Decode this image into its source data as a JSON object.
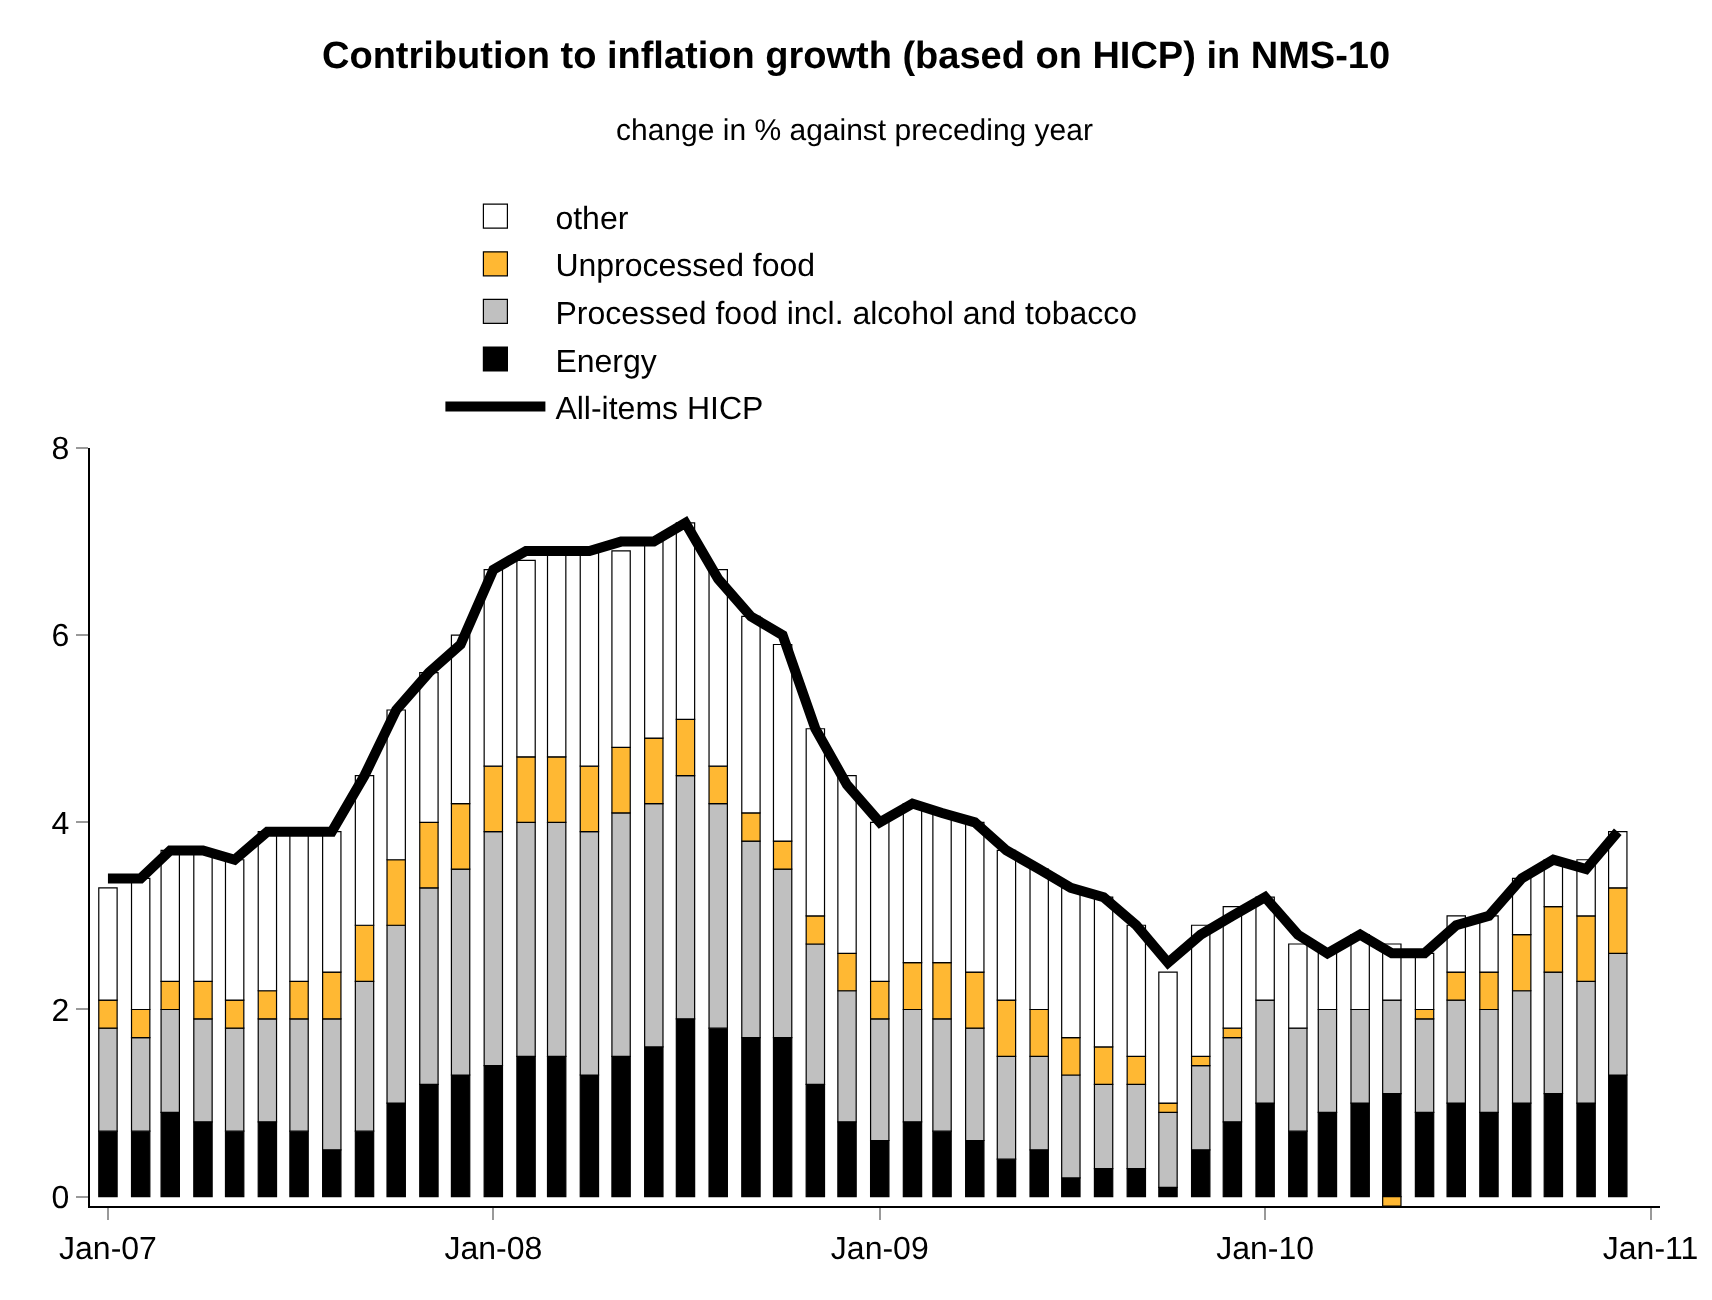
{
  "chart_data": {
    "type": "bar",
    "title": "Contribution to inflation growth (based on HICP) in NMS-10",
    "subtitle": "change in % against preceding year",
    "x": [
      "2007-01",
      "2007-02",
      "2007-03",
      "2007-04",
      "2007-05",
      "2007-06",
      "2007-07",
      "2007-08",
      "2007-09",
      "2007-10",
      "2007-11",
      "2007-12",
      "2008-01",
      "2008-02",
      "2008-03",
      "2008-04",
      "2008-05",
      "2008-06",
      "2008-07",
      "2008-08",
      "2008-09",
      "2008-10",
      "2008-11",
      "2008-12",
      "2009-01",
      "2009-02",
      "2009-03",
      "2009-04",
      "2009-05",
      "2009-06",
      "2009-07",
      "2009-08",
      "2009-09",
      "2009-10",
      "2009-11",
      "2009-12",
      "2010-01",
      "2010-02",
      "2010-03",
      "2010-04",
      "2010-05",
      "2010-06",
      "2010-07",
      "2010-08",
      "2010-09",
      "2010-10",
      "2010-11",
      "2010-12"
    ],
    "stacked": true,
    "series": [
      {
        "name": "Energy",
        "color": "#000000",
        "values": [
          0.7,
          0.7,
          0.9,
          0.8,
          0.7,
          0.8,
          0.7,
          0.5,
          0.7,
          1.0,
          1.2,
          1.3,
          1.4,
          1.5,
          1.5,
          1.3,
          1.5,
          1.6,
          1.9,
          1.8,
          1.7,
          1.7,
          1.2,
          0.8,
          0.6,
          0.8,
          0.7,
          0.6,
          0.4,
          0.5,
          0.2,
          0.3,
          0.3,
          0.1,
          0.5,
          0.8,
          1.0,
          0.7,
          0.9,
          1.0,
          1.1,
          0.9,
          1.0,
          0.9,
          1.0,
          1.1,
          1.0,
          1.3
        ]
      },
      {
        "name": "Processed food incl. alcohol and tobacco",
        "color": "#c0c0c0",
        "values": [
          1.1,
          1.0,
          1.1,
          1.1,
          1.1,
          1.1,
          1.2,
          1.4,
          1.6,
          1.9,
          2.1,
          2.2,
          2.5,
          2.5,
          2.5,
          2.6,
          2.6,
          2.6,
          2.6,
          2.4,
          2.1,
          1.8,
          1.5,
          1.4,
          1.3,
          1.2,
          1.2,
          1.2,
          1.1,
          1.0,
          1.1,
          0.9,
          0.9,
          0.8,
          0.9,
          0.9,
          1.1,
          1.1,
          1.1,
          1.0,
          1.0,
          1.0,
          1.1,
          1.1,
          1.2,
          1.3,
          1.3,
          1.3
        ]
      },
      {
        "name": "Unprocessed food",
        "color": "#ffb833",
        "values": [
          0.3,
          0.3,
          0.3,
          0.4,
          0.3,
          0.3,
          0.4,
          0.5,
          0.6,
          0.7,
          0.7,
          0.7,
          0.7,
          0.7,
          0.7,
          0.7,
          0.7,
          0.7,
          0.6,
          0.4,
          0.3,
          0.3,
          0.3,
          0.4,
          0.4,
          0.5,
          0.6,
          0.6,
          0.6,
          0.5,
          0.4,
          0.4,
          0.3,
          0.1,
          0.1,
          0.1,
          0,
          0,
          0,
          0,
          -0.1,
          0.1,
          0.3,
          0.4,
          0.6,
          0.7,
          0.7,
          0.7
        ]
      },
      {
        "name": "other",
        "color": "#ffffff",
        "values": [
          1.2,
          1.4,
          1.4,
          1.4,
          1.5,
          1.7,
          1.6,
          1.5,
          1.6,
          1.6,
          1.6,
          1.8,
          2.1,
          2.1,
          2.2,
          2.3,
          2.1,
          2.1,
          2.1,
          2.1,
          2.1,
          2.1,
          2.0,
          1.9,
          1.7,
          1.7,
          1.6,
          1.6,
          1.6,
          1.5,
          1.6,
          1.6,
          1.4,
          1.4,
          1.4,
          1.3,
          1.1,
          0.9,
          0.6,
          0.8,
          0.6,
          0.6,
          0.6,
          0.6,
          0.6,
          0.5,
          0.6,
          0.6
        ]
      },
      {
        "name": "All-items HICP",
        "type": "line",
        "color": "#000000",
        "values": [
          3.4,
          3.4,
          3.7,
          3.7,
          3.6,
          3.9,
          3.9,
          3.9,
          4.5,
          5.2,
          5.6,
          5.9,
          6.7,
          6.9,
          6.9,
          6.9,
          7.0,
          7.0,
          7.2,
          6.6,
          6.2,
          6.0,
          5.0,
          4.4,
          4.0,
          4.2,
          4.1,
          4.0,
          3.7,
          3.5,
          3.3,
          3.2,
          2.9,
          2.5,
          2.8,
          3.0,
          3.2,
          2.8,
          2.6,
          2.8,
          2.6,
          2.6,
          2.9,
          3.0,
          3.4,
          3.6,
          3.5,
          3.9
        ]
      }
    ],
    "xlim": [
      "2006-12-15",
      "2011-01-10"
    ],
    "xticks": [
      {
        "value": "2007-01",
        "label": "Jan-07"
      },
      {
        "value": "2008-01",
        "label": "Jan-08"
      },
      {
        "value": "2009-01",
        "label": "Jan-09"
      },
      {
        "value": "2010-01",
        "label": "Jan-10"
      },
      {
        "value": "2011-01",
        "label": "Jan-11"
      }
    ],
    "ylim": [
      -0.1,
      8
    ],
    "yticks": [
      0,
      2,
      4,
      6,
      8
    ],
    "grid": false,
    "legend": "top",
    "marker": "none",
    "line_style": "solid"
  }
}
